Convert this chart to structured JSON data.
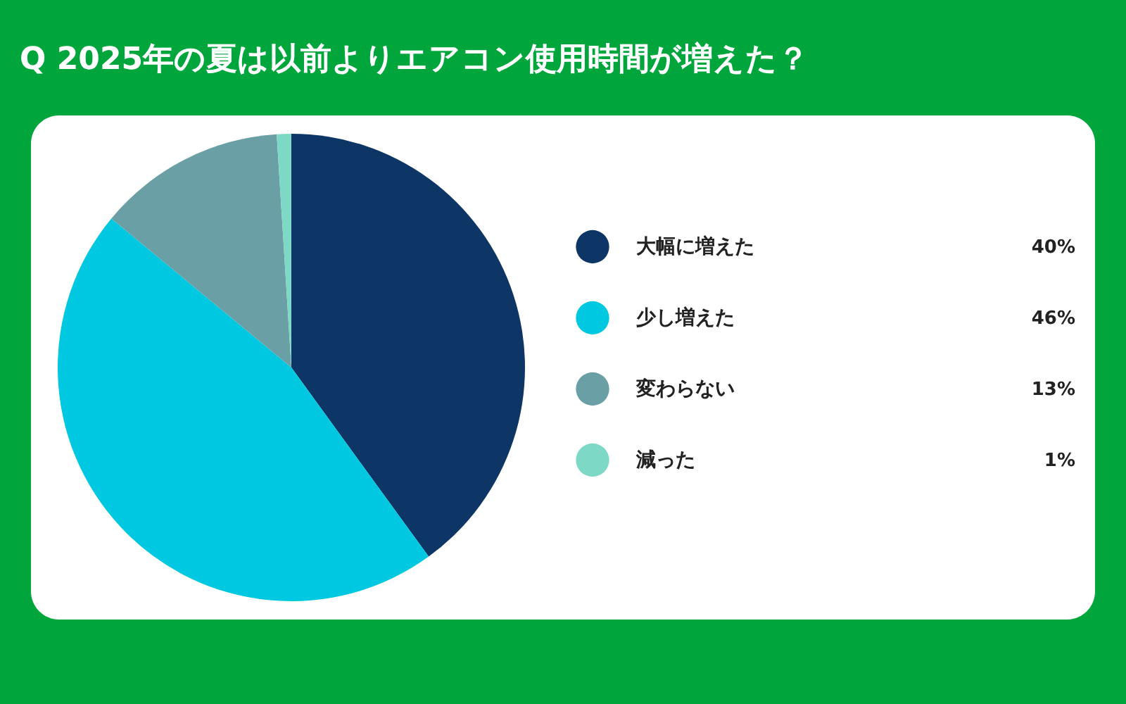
{
  "chart_data": {
    "type": "pie",
    "title": "Q 2025年の夏は以前よりエアコン使用時間が増えた？",
    "categories": [
      "大幅に増えた",
      "少し増えた",
      "変わらない",
      "減った"
    ],
    "values": [
      40,
      46,
      13,
      1
    ],
    "colors": [
      "#0d3566",
      "#00c8e0",
      "#6a9fa5",
      "#7dd9c5"
    ],
    "value_labels": [
      "40%",
      "46%",
      "13%",
      "1%"
    ],
    "legend": "right"
  }
}
